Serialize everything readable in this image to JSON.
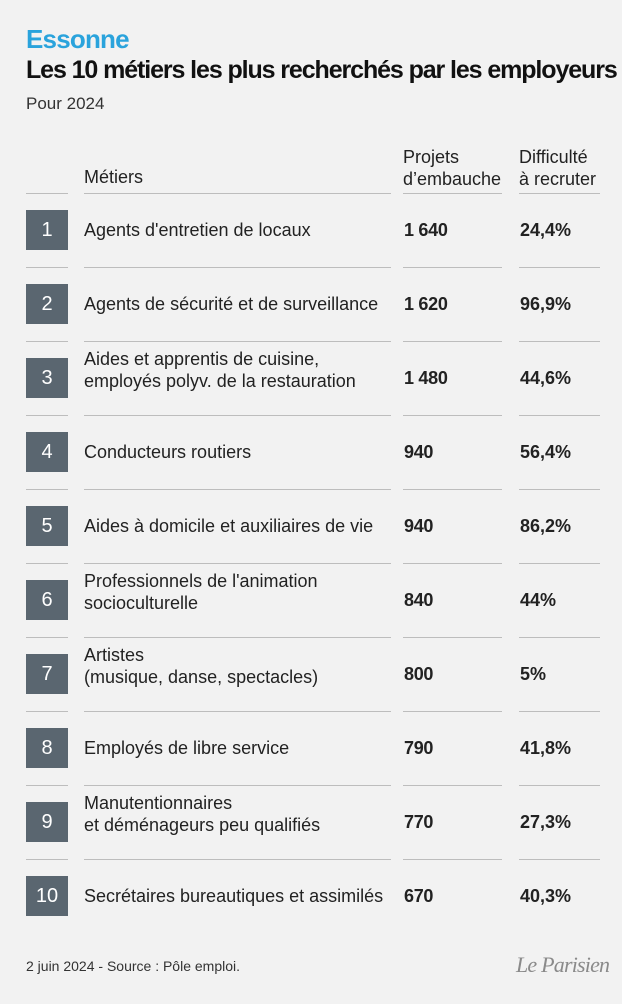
{
  "header": {
    "kicker": "Essonne",
    "title": "Les 10 métiers les plus recherchés par les employeurs",
    "subtitle": "Pour 2024"
  },
  "columns": {
    "metiers": "Métiers",
    "projets_line1": "Projets",
    "projets_line2": "d’embauche",
    "difficulte_line1": "Difficulté",
    "difficulte_line2": "à recruter"
  },
  "rows": [
    {
      "rank": "1",
      "line1": "Agents d'entretien de locaux",
      "line2": "",
      "projets": "1 640",
      "difficulte": "24,4%"
    },
    {
      "rank": "2",
      "line1": "Agents de sécurité et de surveillance",
      "line2": "",
      "projets": "1 620",
      "difficulte": "96,9%"
    },
    {
      "rank": "3",
      "line1": "Aides et apprentis de cuisine,",
      "line2": "employés polyv. de la restauration",
      "projets": "1 480",
      "difficulte": "44,6%"
    },
    {
      "rank": "4",
      "line1": "Conducteurs routiers",
      "line2": "",
      "projets": "940",
      "difficulte": "56,4%"
    },
    {
      "rank": "5",
      "line1": "Aides à domicile et auxiliaires de vie",
      "line2": "",
      "projets": "940",
      "difficulte": "86,2%"
    },
    {
      "rank": "6",
      "line1": "Professionnels de l'animation",
      "line2": "socioculturelle",
      "projets": "840",
      "difficulte": "44%"
    },
    {
      "rank": "7",
      "line1": "Artistes",
      "line2": "(musique, danse, spectacles)",
      "projets": "800",
      "difficulte": "5%"
    },
    {
      "rank": "8",
      "line1": "Employés de libre service",
      "line2": "",
      "projets": "790",
      "difficulte": "41,8%"
    },
    {
      "rank": "9",
      "line1": "Manutentionnaires",
      "line2": "et déménageurs peu qualifiés",
      "projets": "770",
      "difficulte": "27,3%"
    },
    {
      "rank": "10",
      "line1": "Secrétaires bureautiques et assimilés",
      "line2": "",
      "projets": "670",
      "difficulte": "40,3%"
    }
  ],
  "footer": {
    "source": "2 juin 2024 - Source : Pôle emploi.",
    "logo": "Le Parisien"
  },
  "colors": {
    "kicker": "#2aa3dc",
    "rank_box": "#5a6670",
    "background": "#f2f2f2"
  }
}
